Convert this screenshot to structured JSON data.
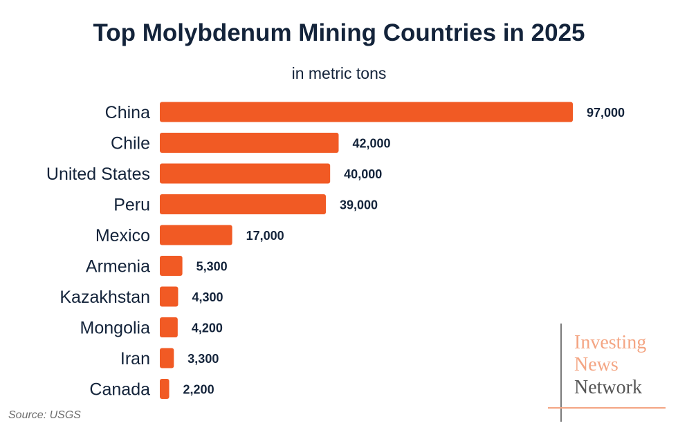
{
  "chart_data": {
    "type": "bar",
    "orientation": "horizontal",
    "title": "Top Molybdenum Mining Countries in 2025",
    "subtitle": "in metric tons",
    "categories": [
      "China",
      "Chile",
      "United States",
      "Peru",
      "Mexico",
      "Armenia",
      "Kazakhstan",
      "Mongolia",
      "Iran",
      "Canada"
    ],
    "values": [
      97000,
      42000,
      40000,
      39000,
      17000,
      5300,
      4300,
      4200,
      3300,
      2200
    ],
    "value_labels": [
      "97,000",
      "42,000",
      "40,000",
      "39,000",
      "17,000",
      "5,300",
      "4,300",
      "4,200",
      "3,300",
      "2,200"
    ],
    "xlim": [
      0,
      97000
    ],
    "bar_color": "#f15a24",
    "grid": false,
    "legend": "none"
  },
  "source": "Source: USGS",
  "logo": {
    "line1": "Investing",
    "line2": "News",
    "line3": "Network",
    "accent_color": "#f4a583",
    "text_color": "#555555"
  }
}
